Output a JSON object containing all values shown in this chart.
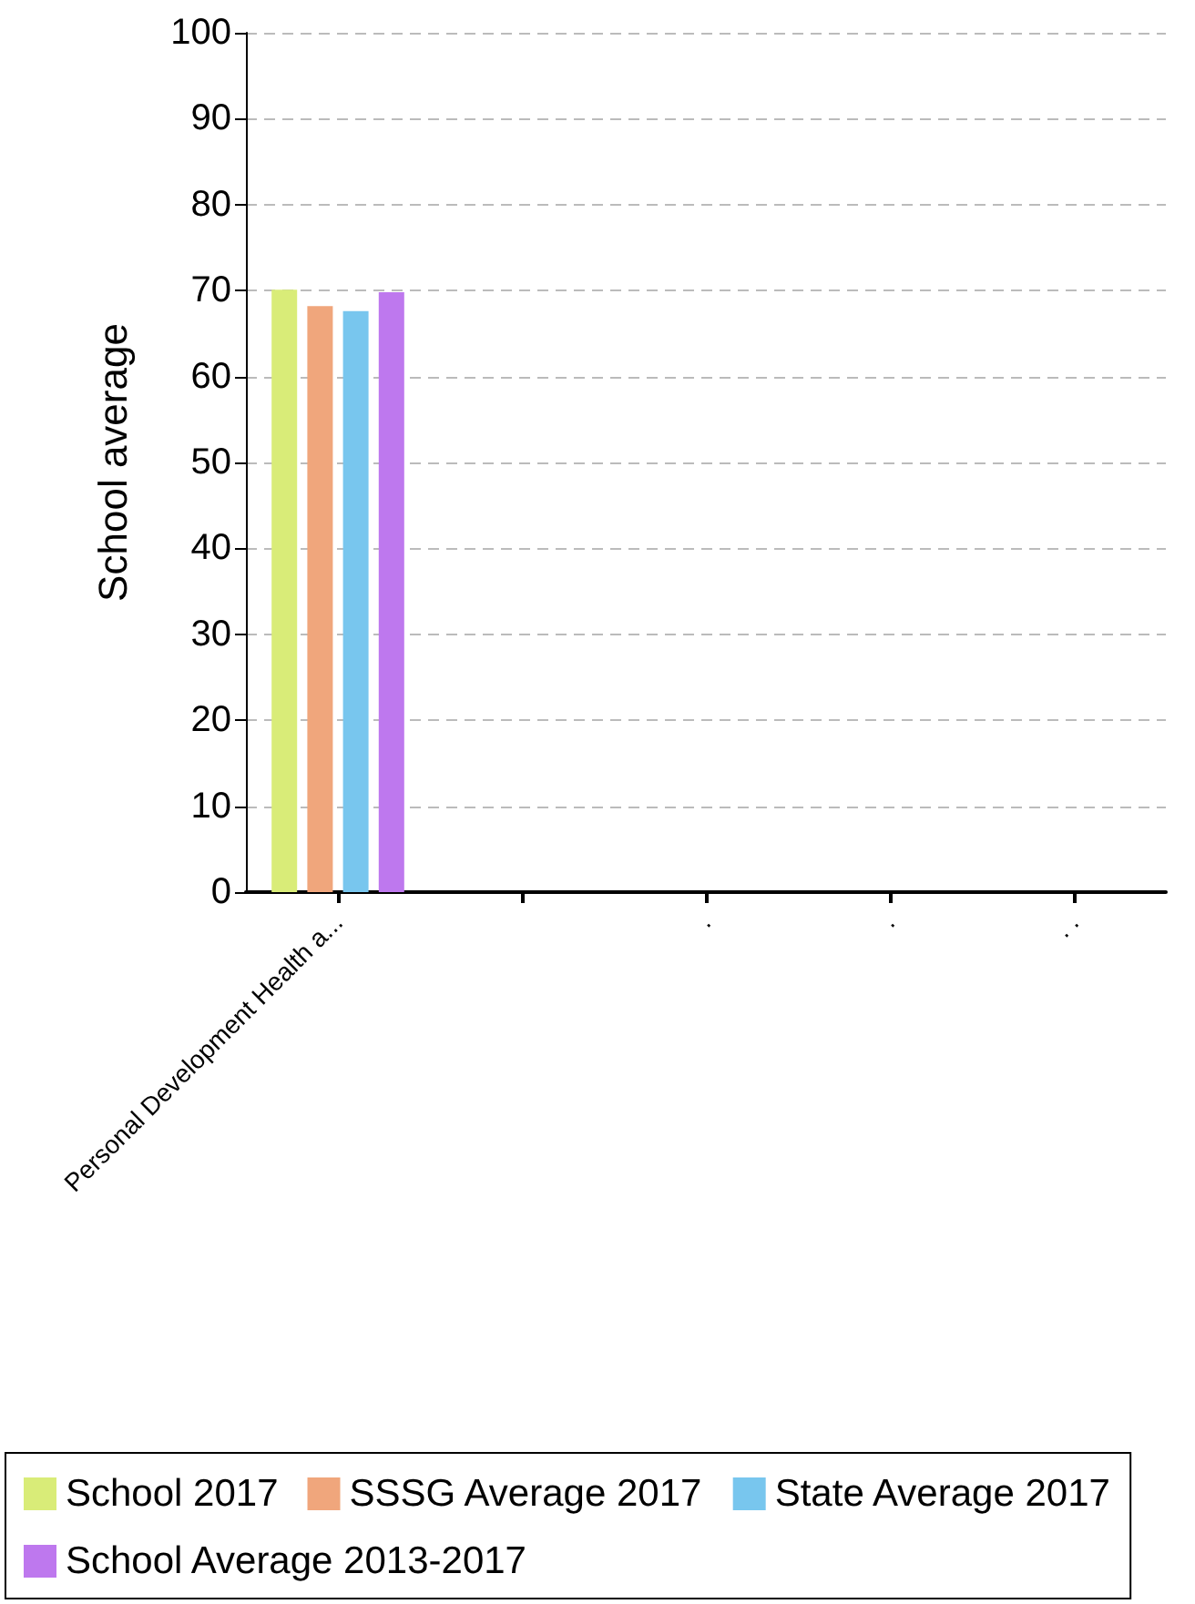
{
  "chart_data": {
    "type": "bar",
    "ylabel": "School average",
    "categories": [
      "Personal Development Health a...",
      null,
      ".",
      ".",
      ". ."
    ],
    "series": [
      {
        "name": "School 2017",
        "color": "#d9ec78",
        "values": [
          70.1,
          null,
          null,
          null,
          null
        ]
      },
      {
        "name": "SSSG Average 2017",
        "color": "#f0a67c",
        "values": [
          68.2,
          null,
          null,
          null,
          null
        ]
      },
      {
        "name": "State Average 2017",
        "color": "#78c6ee",
        "values": [
          67.6,
          null,
          null,
          null,
          null
        ]
      },
      {
        "name": "School Average 2013-2017",
        "color": "#be78ee",
        "values": [
          69.8,
          null,
          null,
          null,
          null
        ]
      }
    ],
    "ylim": [
      0,
      100
    ],
    "yticks": [
      0,
      10,
      20,
      30,
      40,
      50,
      60,
      70,
      80,
      90,
      100
    ],
    "grid": "y",
    "legend": "bottom"
  }
}
